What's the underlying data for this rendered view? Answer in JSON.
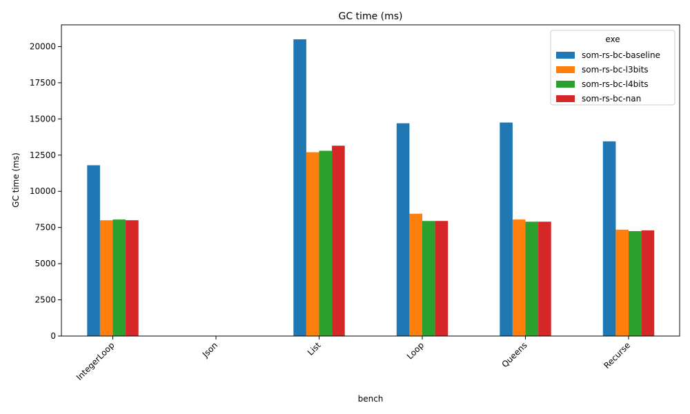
{
  "chart_data": {
    "type": "bar",
    "title": "GC time (ms)",
    "xlabel": "bench",
    "ylabel": "GC time (ms)",
    "categories": [
      "IntegerLoop",
      "Json",
      "List",
      "Loop",
      "Queens",
      "Recurse"
    ],
    "series": [
      {
        "name": "som-rs-bc-baseline",
        "color": "#1f77b4",
        "values": [
          11800,
          null,
          20500,
          14700,
          14750,
          13450
        ]
      },
      {
        "name": "som-rs-bc-l3bits",
        "color": "#ff7f0e",
        "values": [
          8000,
          null,
          12700,
          8450,
          8050,
          7350
        ]
      },
      {
        "name": "som-rs-bc-l4bits",
        "color": "#2ca02c",
        "values": [
          8050,
          null,
          12800,
          7950,
          7900,
          7250
        ]
      },
      {
        "name": "som-rs-bc-nan",
        "color": "#d62728",
        "values": [
          8000,
          null,
          13150,
          7950,
          7900,
          7300
        ]
      }
    ],
    "ylim": [
      0,
      21500
    ],
    "yticks": [
      0,
      2500,
      5000,
      7500,
      10000,
      12500,
      15000,
      17500,
      20000
    ],
    "grid": false,
    "legend": {
      "title": "exe",
      "placement": "top-right"
    }
  }
}
